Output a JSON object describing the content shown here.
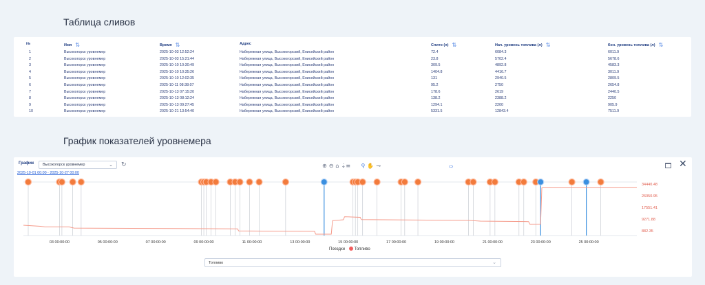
{
  "drains_title": "Таблица сливов",
  "chart_title": "График показателей уровнемера",
  "table": {
    "headers": {
      "num": "№",
      "name": "Имя",
      "time": "Время",
      "address": "Адрес",
      "drained": "Слито (л)",
      "start_level": "Нач. уровень топлива (л)",
      "end_level": "Кон. уровень топлива (л)"
    },
    "rows": [
      {
        "num": "1",
        "name": "Высокогорск уровнемер",
        "time": "2025-10-03 12:52:24",
        "address": "Набережная улица, Высокогорский, Енисейский район",
        "drained": "72.4",
        "start": "6084.3",
        "end": "6011.9"
      },
      {
        "num": "2",
        "name": "Высокогорск уровнемер",
        "time": "2025-10-03 15:21:44",
        "address": "Набережная улица, Высокогорский, Енисейский район",
        "drained": "23.8",
        "start": "5702.4",
        "end": "5678.6"
      },
      {
        "num": "3",
        "name": "Высокогорск уровнемер",
        "time": "2025-10-10 10:30:49",
        "address": "Набережная улица, Высокогорский, Енисейский район",
        "drained": "309.5",
        "start": "4892.8",
        "end": "4583.3"
      },
      {
        "num": "4",
        "name": "Высокогорск уровнемер",
        "time": "2025-10-10 10:35:26",
        "address": "Набережная улица, Высокогорский, Енисейский район",
        "drained": "1404.8",
        "start": "4416.7",
        "end": "3011.9"
      },
      {
        "num": "5",
        "name": "Высокогорск уровнемер",
        "time": "2025-10-10 12:02:35",
        "address": "Набережная улица, Высокогорский, Енисейский район",
        "drained": "131",
        "start": "2940.5",
        "end": "2809.5"
      },
      {
        "num": "6",
        "name": "Высокогорск уровнемер",
        "time": "2025-10-11 08:38:07",
        "address": "Набережная улица, Высокогорский, Енисейский район",
        "drained": "95.2",
        "start": "2750",
        "end": "2654.8"
      },
      {
        "num": "7",
        "name": "Высокогорск уровнемер",
        "time": "2025-10-13 07:15:20",
        "address": "Набережная улица, Высокогорский, Енисейский район",
        "drained": "178.6",
        "start": "2619",
        "end": "2440.5"
      },
      {
        "num": "8",
        "name": "Высокогорск уровнемер",
        "time": "2025-10-13 08:12:24",
        "address": "Набережная улица, Высокогорский, Енисейский район",
        "drained": "138.2",
        "start": "2388.2",
        "end": "2250"
      },
      {
        "num": "9",
        "name": "Высокогорск уровнемер",
        "time": "2025-10-13 09:27:45",
        "address": "Набережная улица, Высокогорский, Енисейский район",
        "drained": "1294.1",
        "start": "2200",
        "end": "905.9"
      },
      {
        "num": "10",
        "name": "Высокогорск уровнемер",
        "time": "2025-10-21 13:54:40",
        "address": "Набережная улица, Высокогорский, Енисейский район",
        "drained": "5331.5",
        "start": "12843.4",
        "end": "7511.9"
      }
    ]
  },
  "toolbar": {
    "chart_label": "График",
    "device_select": "Высокогорск уровнемер",
    "date_range": "2025-10-01 00:00 - 2025-10-27 00:00",
    "icons": [
      "zoom-in-icon",
      "zoom-out-icon",
      "home-icon",
      "download-icon",
      "search-icon",
      "hand-icon",
      "link-icon"
    ]
  },
  "legend": {
    "trips_label": "Поездки",
    "fuel_label": "Топливо"
  },
  "metric_select": "Топливо",
  "colors": {
    "fuel_line": "#f59a8a",
    "drain_marker": "#f27b3c",
    "refill_marker": "#3a8fe0",
    "axis_text": "#e05a4a"
  },
  "chart_data": {
    "type": "line",
    "x_ticks": [
      "03 00:00:00",
      "05 00:00:00",
      "07 00:00:00",
      "09 00:00:00",
      "11 00:00:00",
      "13 00:00:00",
      "15 00:00:00",
      "17 00:00:00",
      "19 00:00:00",
      "21 00:00:00",
      "23 00:00:00",
      "25 00:00:00"
    ],
    "y_ticks": [
      "34440.48",
      "26050.95",
      "17551.41",
      "9271.88",
      "882.35"
    ],
    "ylim": [
      882.35,
      34440.48
    ],
    "xlim_days": [
      1.5,
      27
    ],
    "series": [
      {
        "name": "Топливо",
        "x_days": [
          1.5,
          2.2,
          2.4,
          3.4,
          3.6,
          10.4,
          10.45,
          13.6,
          13.65,
          14.3,
          14.35,
          14.8,
          14.85,
          15.5,
          15.55,
          20.0,
          20.5,
          22.5,
          22.55,
          23.0,
          23.05,
          27.0
        ],
        "values": [
          6800,
          6084,
          5702,
          5702,
          4900,
          4400,
          3011,
          2800,
          905,
          905,
          9800,
          10400,
          12400,
          12000,
          10500,
          10000,
          9500,
          9200,
          7500,
          7600,
          31500,
          31600
        ]
      }
    ],
    "drain_markers_days": [
      1.7,
      3.0,
      3.1,
      3.55,
      3.9,
      8.9,
      9.0,
      9.1,
      9.3,
      9.5,
      10.1,
      10.3,
      10.5,
      10.9,
      11.3,
      12.4,
      15.2,
      15.3,
      15.4,
      15.6,
      16.2,
      17.2,
      17.35,
      17.9,
      20.0,
      20.2,
      20.9,
      21.1,
      22.1,
      22.3,
      22.8,
      24.3,
      25.5
    ],
    "refill_markers_days": [
      14.0,
      23.0,
      24.9
    ]
  }
}
